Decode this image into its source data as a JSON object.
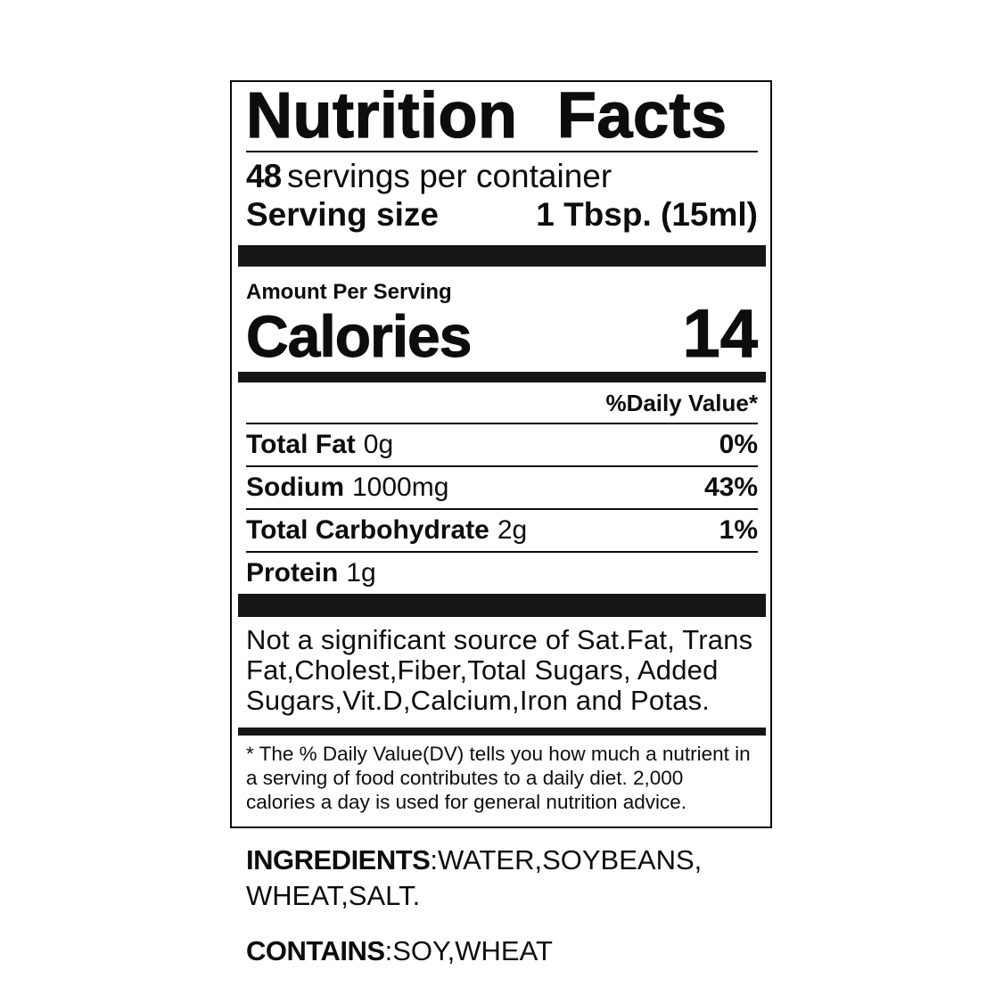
{
  "label": {
    "title": "Nutrition Facts",
    "servings": {
      "count": "48",
      "text": "servings per container"
    },
    "serving_size": {
      "label": "Serving size",
      "value": "1 Tbsp. (15ml)"
    },
    "amount_per_serving": "Amount Per Serving",
    "calories": {
      "label": "Calories",
      "value": "14"
    },
    "daily_value_header": "%Daily Value*",
    "nutrients": [
      {
        "name": "Total Fat",
        "amount": "0g",
        "dv": "0%"
      },
      {
        "name": "Sodium",
        "amount": "1000mg",
        "dv": "43%"
      },
      {
        "name": "Total Carbohydrate",
        "amount": "2g",
        "dv": "1%"
      },
      {
        "name": "Protein",
        "amount": "1g",
        "dv": ""
      }
    ],
    "not_significant_text": "Not a significant source of Sat.Fat, Trans  Fat,Cholest,Fiber,Total Sugars, Added Sugars,Vit.D,Calcium,Iron and Potas.",
    "footnote": "* The % Daily Value(DV) tells you how much a nutrient in a serving of food contributes to a daily diet. 2,000 calories a day is used for general nutrition advice."
  },
  "ingredients": {
    "label": "INGREDIENTS",
    "value": ":WATER,SOYBEANS, WHEAT,SALT."
  },
  "contains": {
    "label": "CONTAINS",
    "value": ":SOY,WHEAT"
  },
  "colors": {
    "text": "#0d0d0d",
    "bar": "#161616",
    "background": "#ffffff"
  }
}
